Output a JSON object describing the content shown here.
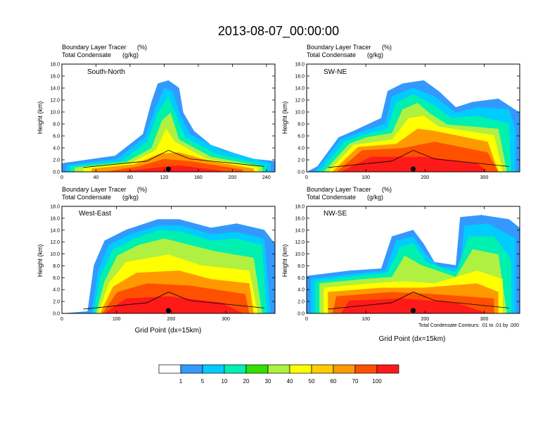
{
  "figure": {
    "title": "2013-08-07_00:00:00",
    "contour_note": "Total Condensate Contours: .01 to .01 by .000"
  },
  "colors": {
    "c1": "#ffffff",
    "c2": "#3399ff",
    "c3": "#00ccff",
    "c4": "#00f0b0",
    "c5": "#33e000",
    "c6": "#b0f040",
    "c7": "#ffff00",
    "c8": "#ffcc00",
    "c9": "#ff9900",
    "c10": "#ff5000",
    "c11": "#ff1a1a",
    "contour": "#000000"
  },
  "chart_data": [
    {
      "type": "heatmap",
      "label": "South-North",
      "subtitle_left": "Boundary Layer Tracer",
      "subtitle_left2": "Total Condensate",
      "unit1": "(%)",
      "unit2": "(g/kg)",
      "ylabel": "Height (km)",
      "xlabel": "",
      "xlim": [
        0,
        250
      ],
      "ylim": [
        0,
        18
      ],
      "xticks": [
        "0",
        "40",
        "80",
        "120",
        "160",
        "200",
        "240"
      ],
      "yticks": [
        "0.0",
        "2.0",
        "4.0",
        "6.0",
        "8.0",
        "10.0",
        "12.0",
        "14.0",
        "16.0",
        "18.0"
      ],
      "marker_x": 125
    },
    {
      "type": "heatmap",
      "label": "SW-NE",
      "subtitle_left": "Boundary Layer Tracer",
      "subtitle_left2": "Total Condensate",
      "unit1": "(%)",
      "unit2": "(g/kg)",
      "ylabel": "Height (km)",
      "xlabel": "",
      "xlim": [
        0,
        360
      ],
      "ylim": [
        0,
        18
      ],
      "xticks": [
        "0",
        "100",
        "200",
        "300"
      ],
      "yticks": [
        "0.0",
        "2.0",
        "4.0",
        "6.0",
        "8.0",
        "10.0",
        "12.0",
        "14.0",
        "16.0",
        "18.0"
      ],
      "marker_x": 180
    },
    {
      "type": "heatmap",
      "label": "West-East",
      "subtitle_left": "Boundary Layer Tracer",
      "subtitle_left2": "Total Condensate",
      "unit1": "(%)",
      "unit2": "(g/kg)",
      "ylabel": "Height (km)",
      "xlabel": "Grid Point (dx=15km)",
      "xlim": [
        0,
        390
      ],
      "ylim": [
        0,
        18
      ],
      "xticks": [
        "0",
        "100",
        "200",
        "300"
      ],
      "yticks": [
        "0.0",
        "2.0",
        "4.0",
        "6.0",
        "8.0",
        "10.0",
        "12.0",
        "14.0",
        "16.0",
        "18.0"
      ],
      "marker_x": 195
    },
    {
      "type": "heatmap",
      "label": "NW-SE",
      "subtitle_left": "Boundary Layer Tracer",
      "subtitle_left2": "Total Condensate",
      "unit1": "(%)",
      "unit2": "(g/kg)",
      "ylabel": "Height (km)",
      "xlabel": "Grid Point (dx=15km)",
      "xlim": [
        0,
        360
      ],
      "ylim": [
        0,
        18
      ],
      "xticks": [
        "0",
        "100",
        "200",
        "300"
      ],
      "yticks": [
        "0.0",
        "2.0",
        "4.0",
        "6.0",
        "8.0",
        "10.0",
        "12.0",
        "14.0",
        "16.0",
        "18.0"
      ],
      "marker_x": 180
    }
  ],
  "colorbar": {
    "labels": [
      "1",
      "5",
      "10",
      "20",
      "30",
      "40",
      "50",
      "60",
      "70",
      "100"
    ],
    "colors": [
      "#ffffff",
      "#3399ff",
      "#00ccff",
      "#00f0b0",
      "#33e000",
      "#b0f040",
      "#ffff00",
      "#ffcc00",
      "#ff9900",
      "#ff5000",
      "#ff1a1a"
    ]
  }
}
